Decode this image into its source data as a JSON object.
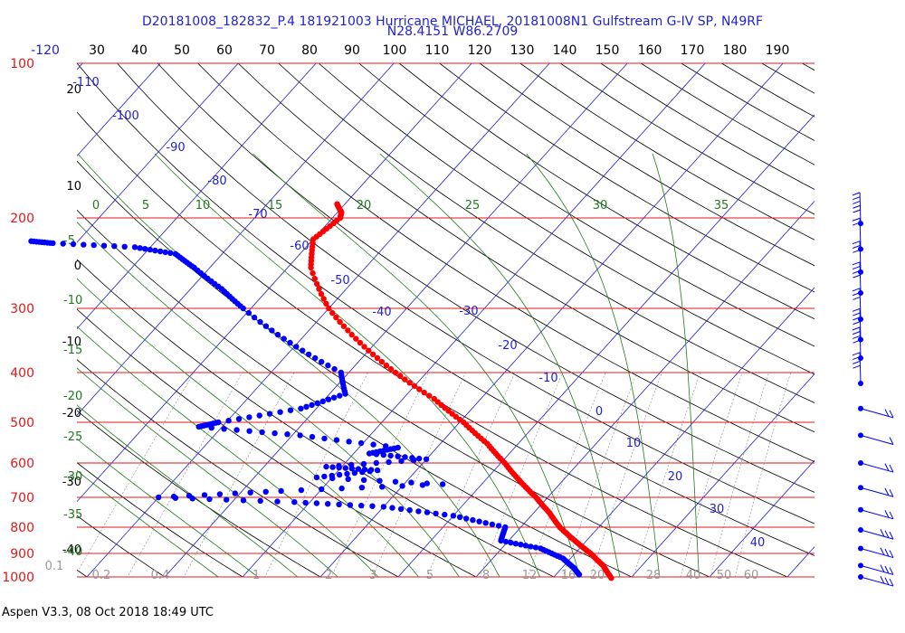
{
  "title_line1": "D20181008_182832_P.4 181921003 Hurricane MICHAEL, 20181008N1 Gulfstream G-IV SP, N49RF",
  "title_line2": "N28.4151 W86.2709",
  "footer": "Aspen V3.3, 08 Oct 2018  18:49 UTC",
  "colors": {
    "pressure": "#e01818",
    "mixing": "#1f7a1f",
    "isotherm": "#1f1fd6",
    "top_axis": "#000000",
    "temp_profile": "#ff0000",
    "dew_profile": "#0000ff",
    "wind": "#0000ff"
  },
  "chart_data": {
    "type": "skew-t",
    "pressure_levels_hpa": [
      100,
      200,
      300,
      400,
      500,
      600,
      700,
      800,
      900,
      1000
    ],
    "top_axis_labels": [
      "-120",
      "30",
      "40",
      "50",
      "60",
      "70",
      "80",
      "90",
      "100",
      "110",
      "120",
      "130",
      "140",
      "150",
      "160",
      "170",
      "180",
      "190"
    ],
    "dry_adiabat_labels": [
      "20",
      "10",
      "0",
      "-10",
      "-20",
      "-30",
      "-40"
    ],
    "mixing_ratio_top": [
      "0",
      "5",
      "10",
      "15",
      "20",
      "25",
      "30",
      "35"
    ],
    "mixing_ratio_left": [
      "-5",
      "-10",
      "-15",
      "-20",
      "-25",
      "-30",
      "-35",
      "-40"
    ],
    "isotherm_labels": [
      "-110",
      "-100",
      "-90",
      "-80",
      "-70",
      "-60",
      "-50",
      "-40",
      "-30",
      "-20",
      "-10",
      "0",
      "10",
      "20",
      "30",
      "40"
    ],
    "bottom_labels": [
      "0.1",
      "0.2",
      "0.4",
      "1",
      "2",
      "3",
      "5",
      "8",
      "12",
      "16",
      "20",
      "28",
      "40",
      "50",
      "60"
    ],
    "temperature_profile": [
      {
        "p": 188,
        "t": -51
      },
      {
        "p": 195,
        "t": -49.5
      },
      {
        "p": 200,
        "t": -49
      },
      {
        "p": 220,
        "t": -50
      },
      {
        "p": 250,
        "t": -47
      },
      {
        "p": 300,
        "t": -40
      },
      {
        "p": 350,
        "t": -32
      },
      {
        "p": 400,
        "t": -24
      },
      {
        "p": 450,
        "t": -16
      },
      {
        "p": 500,
        "t": -9.5
      },
      {
        "p": 550,
        "t": -4
      },
      {
        "p": 600,
        "t": 0.5
      },
      {
        "p": 650,
        "t": 4.5
      },
      {
        "p": 700,
        "t": 8.5
      },
      {
        "p": 750,
        "t": 12
      },
      {
        "p": 800,
        "t": 15
      },
      {
        "p": 850,
        "t": 18.5
      },
      {
        "p": 900,
        "t": 22
      },
      {
        "p": 950,
        "t": 25
      },
      {
        "p": 1005,
        "t": 27.5
      }
    ],
    "dewpoint_profile": [
      {
        "p": 222,
        "t": -86
      },
      {
        "p": 224,
        "t": -83
      },
      {
        "p": 228,
        "t": -72
      },
      {
        "p": 235,
        "t": -66
      },
      {
        "p": 250,
        "t": -62
      },
      {
        "p": 275,
        "t": -56
      },
      {
        "p": 300,
        "t": -51
      },
      {
        "p": 350,
        "t": -41
      },
      {
        "p": 400,
        "t": -31
      },
      {
        "p": 440,
        "t": -28
      },
      {
        "p": 470,
        "t": -32
      },
      {
        "p": 500,
        "t": -41
      },
      {
        "p": 510,
        "t": -43
      },
      {
        "p": 530,
        "t": -29
      },
      {
        "p": 560,
        "t": -15
      },
      {
        "p": 575,
        "t": -18
      },
      {
        "p": 590,
        "t": -10
      },
      {
        "p": 610,
        "t": -22
      },
      {
        "p": 620,
        "t": -15
      },
      {
        "p": 640,
        "t": -22
      },
      {
        "p": 660,
        "t": -5
      },
      {
        "p": 680,
        "t": -25
      },
      {
        "p": 700,
        "t": -40
      },
      {
        "p": 715,
        "t": -22
      },
      {
        "p": 730,
        "t": -10
      },
      {
        "p": 760,
        "t": 0
      },
      {
        "p": 800,
        "t": 8
      },
      {
        "p": 850,
        "t": 9
      },
      {
        "p": 880,
        "t": 15
      },
      {
        "p": 920,
        "t": 19
      },
      {
        "p": 960,
        "t": 21.5
      },
      {
        "p": 990,
        "t": 23
      }
    ],
    "wind_barbs": [
      {
        "p": 205,
        "kt": 65
      },
      {
        "p": 230,
        "kt": 20
      },
      {
        "p": 255,
        "kt": 30
      },
      {
        "p": 280,
        "kt": 35
      },
      {
        "p": 315,
        "kt": 30
      },
      {
        "p": 345,
        "kt": 35
      },
      {
        "p": 375,
        "kt": 40
      },
      {
        "p": 420,
        "kt": 35
      },
      {
        "p": 470,
        "kt": 15
      },
      {
        "p": 530,
        "kt": 10
      },
      {
        "p": 600,
        "kt": 15
      },
      {
        "p": 670,
        "kt": 20
      },
      {
        "p": 740,
        "kt": 20
      },
      {
        "p": 810,
        "kt": 25
      },
      {
        "p": 880,
        "kt": 25
      },
      {
        "p": 950,
        "kt": 30
      },
      {
        "p": 1000,
        "kt": 25
      }
    ]
  }
}
